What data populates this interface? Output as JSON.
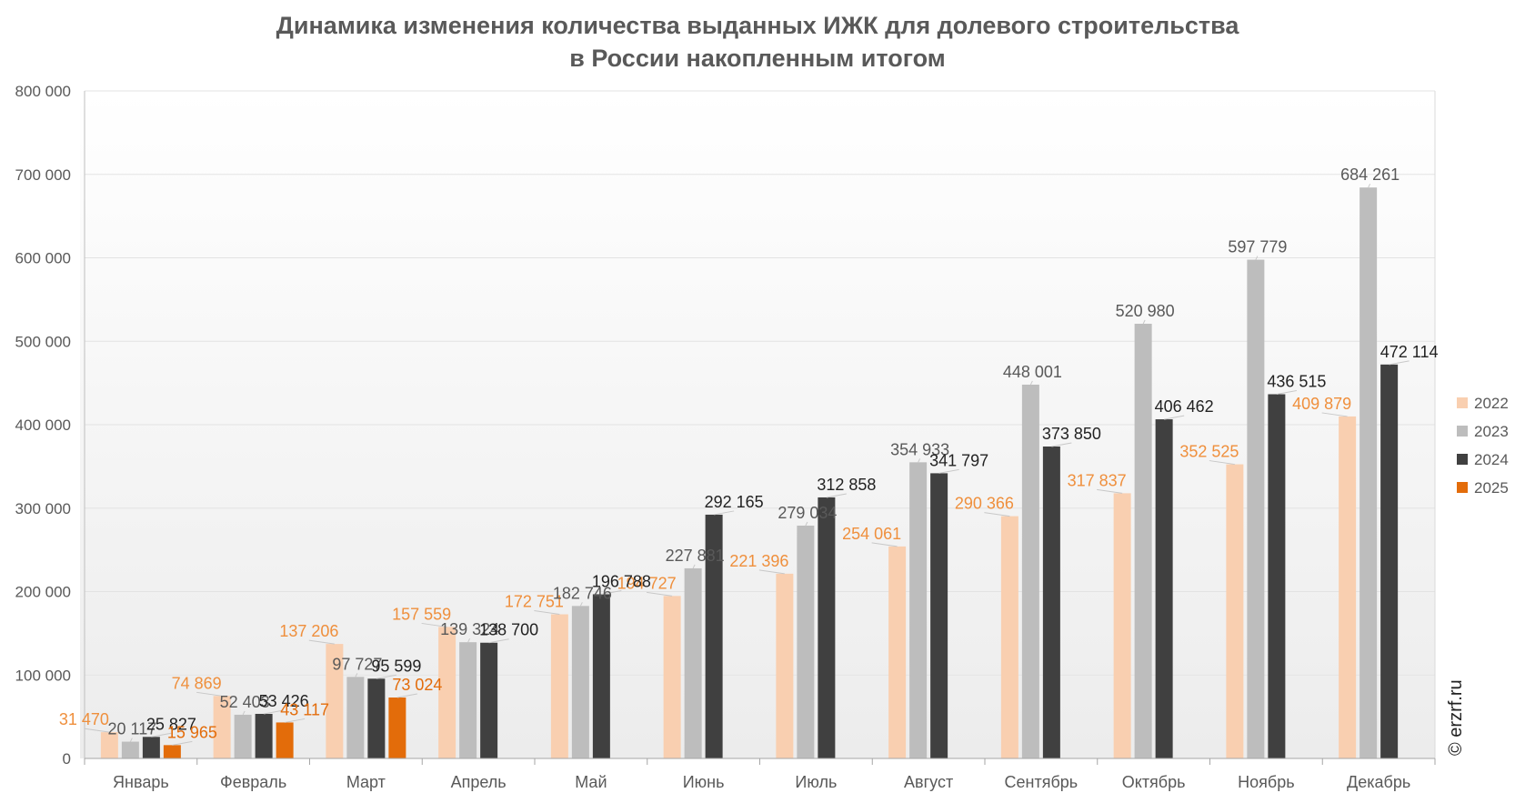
{
  "chart_data": {
    "type": "bar",
    "title_line1": "Динамика изменения количества выданных ИЖК для долевого строительства",
    "title_line2": "в России накопленным итогом",
    "xlabel": "",
    "ylabel": "",
    "ylim": [
      0,
      800000
    ],
    "yticks": [
      "0",
      "100 000",
      "200 000",
      "300 000",
      "400 000",
      "500 000",
      "600 000",
      "700 000",
      "800 000"
    ],
    "categories": [
      "Январь",
      "Февраль",
      "Март",
      "Апрель",
      "Май",
      "Июнь",
      "Июль",
      "Август",
      "Сентябрь",
      "Октябрь",
      "Ноябрь",
      "Декабрь"
    ],
    "series": [
      {
        "name": "2022",
        "color": "#f9cfb0",
        "label_color": "#ef8f3c",
        "values": [
          31470,
          74869,
          137206,
          157559,
          172751,
          194727,
          221396,
          254061,
          290366,
          317837,
          352525,
          409879
        ],
        "labels": [
          "31 470",
          "74 869",
          "137 206",
          "157 559",
          "172 751",
          "194 727",
          "221 396",
          "254 061",
          "290 366",
          "317 837",
          "352 525",
          "409 879"
        ]
      },
      {
        "name": "2023",
        "color": "#bdbdbd",
        "label_color": "#595959",
        "values": [
          20117,
          52403,
          97727,
          139324,
          182746,
          227881,
          279034,
          354933,
          448001,
          520980,
          597779,
          684261
        ],
        "labels": [
          "20 117",
          "52 403",
          "97 727",
          "139 324",
          "182 746",
          "227 881",
          "279 034",
          "354 933",
          "448 001",
          "520 980",
          "597 779",
          "684 261"
        ]
      },
      {
        "name": "2024",
        "color": "#404040",
        "label_color": "#222222",
        "values": [
          25827,
          53426,
          95599,
          138700,
          196788,
          292165,
          312858,
          341797,
          373850,
          406462,
          436515,
          472114
        ],
        "labels": [
          "25 827",
          "53 426",
          "95 599",
          "138 700",
          "196 788",
          "292 165",
          "312 858",
          "341 797",
          "373 850",
          "406 462",
          "436 515",
          "472 114"
        ]
      },
      {
        "name": "2025",
        "color": "#e36c0a",
        "label_color": "#e36c0a",
        "values": [
          15965,
          43117,
          73024,
          null,
          null,
          null,
          null,
          null,
          null,
          null,
          null,
          null
        ],
        "labels": [
          "15 965",
          "43 117",
          "73 024",
          null,
          null,
          null,
          null,
          null,
          null,
          null,
          null,
          null
        ]
      }
    ],
    "legend_position": "right",
    "grid": true
  },
  "credit": "© erzrf.ru"
}
